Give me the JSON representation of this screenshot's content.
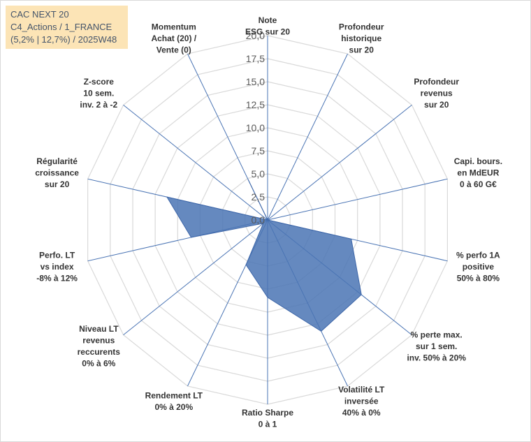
{
  "chart_data": {
    "type": "radar",
    "title_lines": [
      "CAC NEXT 20",
      "C4_Actions / 1_FRANCE",
      "(5,2% | 12,7%) / 2025W48"
    ],
    "rlim": [
      0,
      20
    ],
    "ticks": [
      "0,0",
      "2,5",
      "5,0",
      "7,5",
      "10,0",
      "12,5",
      "15,0",
      "17,5",
      "20,0"
    ],
    "grid_levels": [
      2.5,
      5,
      7.5,
      10,
      12.5,
      15,
      17.5,
      20
    ],
    "axes": [
      {
        "label": [
          "Note",
          "ESG sur 20"
        ]
      },
      {
        "label": [
          "Profondeur",
          "historique",
          "sur 20"
        ]
      },
      {
        "label": [
          "Profondeur",
          "revenus",
          "sur 20"
        ]
      },
      {
        "label": [
          "Capi. bours.",
          "en MdEUR",
          "0 à 60 G€"
        ]
      },
      {
        "label": [
          "% perfo 1A",
          "positive",
          "50% à 80%"
        ]
      },
      {
        "label": [
          "% perte max.",
          "sur 1 sem.",
          "inv. 50% à 20%"
        ]
      },
      {
        "label": [
          "Volatilité LT",
          "inversée",
          "40% à 0%"
        ]
      },
      {
        "label": [
          "Ratio Sharpe",
          "0 à 1"
        ]
      },
      {
        "label": [
          "Rendement LT",
          "0% à 20%"
        ]
      },
      {
        "label": [
          "Niveau LT",
          "revenus",
          "reccurents",
          "0% à 6%"
        ]
      },
      {
        "label": [
          "Perfo. LT",
          "vs index",
          "-8% à 12%"
        ]
      },
      {
        "label": [
          "Régularité",
          "croissance",
          "sur 20"
        ]
      },
      {
        "label": [
          "Z-score",
          "10 sem.",
          "inv. 2 à -2"
        ]
      },
      {
        "label": [
          "Momentum",
          "Achat (20) /",
          "Vente (0)"
        ]
      }
    ],
    "series": [
      {
        "name": "CAC NEXT 20",
        "values": [
          0,
          0,
          0,
          0,
          9.3,
          13.0,
          13.4,
          8.4,
          5.4,
          0.6,
          8.5,
          11.2,
          0,
          4.9
        ],
        "color": "#4a74b4"
      }
    ]
  }
}
